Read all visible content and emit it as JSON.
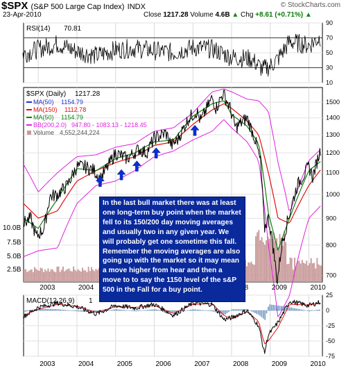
{
  "header": {
    "symbol": "$SPX",
    "name": "(S&P 500 Large Cap Index)",
    "exchange": "INDX",
    "date": "23-Apr-2010",
    "close_label": "Close",
    "close_value": "1217.28",
    "volume_label": "Volume",
    "volume_value": "4.6B",
    "chg_label": "Chg",
    "chg_value": "+8.61 (+0.71%)",
    "up_arrow": "▲",
    "logo_text": "© StockCharts.com"
  },
  "annotation": {
    "text": "In the last bull market there was at least one long-term buy point when the market fell to its 150/200 day moving averages and usually two in any given year.  We will probably get one sometime this fall.  Remember the moving averages are also going up with the market so it may mean a move higher from hear and then a move to to say the 1150 level of the s&P 500 in the Fall for a buy point."
  },
  "colors": {
    "price": "#000000",
    "ma50_blue": "#1f2fd0",
    "ma150_red": "#e01010",
    "ma50_green": "#108010",
    "bollinger": "#e020e0",
    "volume": "#c89a9a",
    "macd": "#000000",
    "signal": "#e01010",
    "histogram": "#4a7bb5",
    "arrow": "#0b2fd6",
    "annot_bg": "#0a2a9b"
  },
  "chart_data": [
    {
      "type": "line",
      "title": "RSI(14) 70.81",
      "legend_label": "RSI(14)",
      "legend_value": "70.81",
      "ylim": [
        10,
        90
      ],
      "y_ticks": [
        10,
        30,
        50,
        70,
        90
      ],
      "reference_lines": [
        30,
        70
      ],
      "x_ticks": [
        "2003",
        "2004",
        "2005",
        "2006",
        "2007",
        "2008",
        "2009",
        "2010"
      ],
      "series": [
        {
          "name": "RSI(14)",
          "x": [
            2002.6,
            2003.0,
            2003.5,
            2004.0,
            2004.5,
            2005.0,
            2005.5,
            2006.0,
            2006.5,
            2007.0,
            2007.5,
            2008.0,
            2008.5,
            2008.8,
            2009.0,
            2009.2,
            2009.5,
            2010.0,
            2010.3
          ],
          "values": [
            48,
            55,
            62,
            52,
            46,
            54,
            56,
            53,
            50,
            57,
            55,
            44,
            42,
            28,
            32,
            42,
            65,
            60,
            70.81
          ]
        }
      ]
    },
    {
      "type": "line",
      "title": "$SPX (Daily) 1217.28",
      "legend_label": "$SPX (Daily)",
      "legend_value": "1217.28",
      "ylim": [
        680,
        1600
      ],
      "y_ticks": [
        700,
        800,
        900,
        1000,
        1100,
        1200,
        1300,
        1400,
        1500
      ],
      "x_ticks": [
        "2003",
        "2004",
        "2005",
        "2006",
        "2007",
        "2008",
        "2009",
        "2010"
      ],
      "legend": [
        {
          "name": "MA(50)",
          "value": "1154.79",
          "color": "#1f2fd0"
        },
        {
          "name": "MA(150)",
          "value": "1112.78",
          "color": "#e01010"
        },
        {
          "name": "MA(50)",
          "value": "1154.79",
          "color": "#108010"
        },
        {
          "name": "BB(200,2.0)",
          "value": "947.80 - 1083.13 - 1218.45",
          "color": "#e020e0"
        },
        {
          "name": "Volume",
          "value": "4,552,244,224",
          "color": "#c89a9a"
        }
      ],
      "volume_axis_ticks": [
        "10.0B",
        "7.5B",
        "5.0B",
        "2.5B"
      ],
      "series": [
        {
          "name": "$SPX (Daily)",
          "x": [
            2002.62,
            2002.8,
            2002.95,
            2003.15,
            2003.3,
            2003.5,
            2003.75,
            2004.0,
            2004.2,
            2004.45,
            2004.6,
            2004.8,
            2005.0,
            2005.3,
            2005.6,
            2005.8,
            2006.0,
            2006.3,
            2006.45,
            2006.6,
            2006.9,
            2007.1,
            2007.2,
            2007.5,
            2007.6,
            2007.78,
            2007.95,
            2008.1,
            2008.4,
            2008.6,
            2008.75,
            2008.85,
            2008.95,
            2009.05,
            2009.18,
            2009.3,
            2009.5,
            2009.7,
            2009.9,
            2010.0,
            2010.1,
            2010.3
          ],
          "values": [
            880,
            900,
            830,
            860,
            990,
            1000,
            1040,
            1130,
            1130,
            1110,
            1070,
            1130,
            1200,
            1170,
            1220,
            1200,
            1280,
            1310,
            1240,
            1270,
            1400,
            1440,
            1380,
            1530,
            1460,
            1560,
            1470,
            1340,
            1400,
            1280,
            1150,
            860,
            900,
            820,
            680,
            800,
            920,
            1040,
            1100,
            1130,
            1080,
            1217
          ]
        },
        {
          "name": "MA(50)",
          "x": [
            2002.62,
            2003.0,
            2003.5,
            2004.0,
            2004.5,
            2005.0,
            2005.5,
            2006.0,
            2006.5,
            2007.0,
            2007.5,
            2007.8,
            2008.0,
            2008.4,
            2008.7,
            2008.95,
            2009.2,
            2009.5,
            2010.0,
            2010.3
          ],
          "values": [
            900,
            860,
            980,
            1120,
            1110,
            1170,
            1200,
            1260,
            1270,
            1410,
            1490,
            1510,
            1420,
            1350,
            1250,
            920,
            780,
            900,
            1110,
            1155
          ]
        },
        {
          "name": "MA(150)",
          "x": [
            2002.62,
            2003.0,
            2003.5,
            2004.0,
            2004.5,
            2005.0,
            2005.5,
            2006.0,
            2006.5,
            2007.0,
            2007.5,
            2007.8,
            2008.0,
            2008.4,
            2008.7,
            2008.95,
            2009.2,
            2009.5,
            2010.0,
            2010.3
          ],
          "values": [
            960,
            900,
            930,
            1060,
            1110,
            1150,
            1180,
            1240,
            1260,
            1360,
            1450,
            1490,
            1460,
            1380,
            1300,
            1100,
            900,
            880,
            1040,
            1113
          ]
        },
        {
          "name": "BB upper",
          "x": [
            2002.62,
            2003.0,
            2003.5,
            2004.0,
            2004.5,
            2005.0,
            2005.5,
            2006.0,
            2006.5,
            2007.0,
            2007.5,
            2007.8,
            2008.0,
            2008.4,
            2008.7,
            2008.95,
            2009.2,
            2009.5,
            2010.0,
            2010.3
          ],
          "values": [
            1140,
            1010,
            1100,
            1180,
            1190,
            1230,
            1250,
            1320,
            1340,
            1430,
            1570,
            1590,
            1570,
            1520,
            1510,
            1440,
            1150,
            920,
            1160,
            1218
          ]
        },
        {
          "name": "BB lower",
          "x": [
            2002.62,
            2003.0,
            2003.5,
            2004.0,
            2004.5,
            2005.0,
            2005.5,
            2006.0,
            2006.5,
            2007.0,
            2007.5,
            2007.8,
            2008.0,
            2008.4,
            2008.7,
            2008.95,
            2009.2,
            2009.5,
            2010.0,
            2010.3
          ],
          "values": [
            760,
            780,
            790,
            960,
            1040,
            1060,
            1110,
            1180,
            1210,
            1270,
            1320,
            1390,
            1340,
            1260,
            1160,
            800,
            580,
            640,
            900,
            950
          ]
        }
      ],
      "buy_arrows_x": [
        2004.6,
        2005.15,
        2005.55,
        2006.05,
        2007.05
      ]
    },
    {
      "type": "line",
      "title": "MACD(12,26,9) 1",
      "legend_label": "MACD(12,26,9)",
      "legend_value": "1",
      "ylim": [
        -75,
        25
      ],
      "y_ticks": [
        25,
        0,
        -25,
        -50,
        -75
      ],
      "x_ticks": [
        "2003",
        "2004",
        "2005",
        "2006",
        "2007",
        "2008",
        "2009",
        "2010"
      ],
      "series": [
        {
          "name": "MACD",
          "x": [
            2002.62,
            2003.0,
            2003.5,
            2004.0,
            2004.5,
            2005.0,
            2005.5,
            2006.0,
            2006.5,
            2007.0,
            2007.5,
            2007.8,
            2008.0,
            2008.4,
            2008.7,
            2008.85,
            2008.95,
            2009.2,
            2009.5,
            2010.0,
            2010.3
          ],
          "values": [
            -10,
            5,
            12,
            6,
            -6,
            8,
            4,
            10,
            -8,
            12,
            10,
            -15,
            -12,
            0,
            -25,
            -70,
            -40,
            -20,
            15,
            8,
            14
          ]
        },
        {
          "name": "Signal",
          "x": [
            2002.62,
            2003.0,
            2003.5,
            2004.0,
            2004.5,
            2005.0,
            2005.5,
            2006.0,
            2006.5,
            2007.0,
            2007.5,
            2007.8,
            2008.0,
            2008.4,
            2008.7,
            2008.85,
            2008.95,
            2009.2,
            2009.5,
            2010.0,
            2010.3
          ],
          "values": [
            -8,
            2,
            10,
            7,
            -3,
            6,
            5,
            8,
            -5,
            10,
            11,
            -8,
            -14,
            -2,
            -18,
            -55,
            -50,
            -28,
            10,
            9,
            12
          ]
        }
      ]
    }
  ]
}
